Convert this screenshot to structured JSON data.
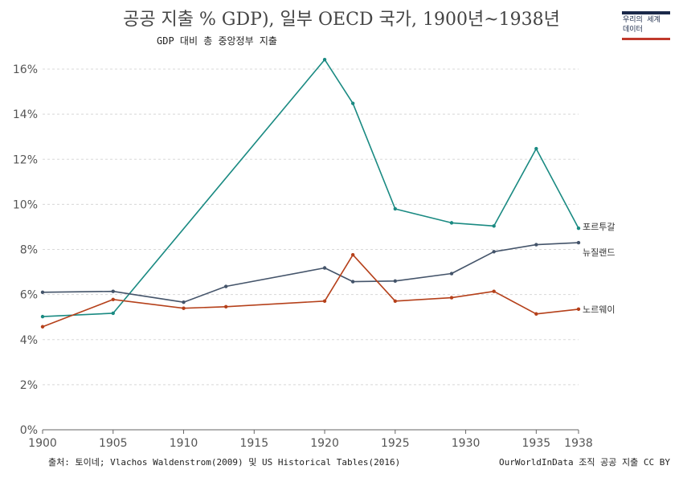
{
  "header": {
    "title": "공공 지출 % GDP), 일부 OECD 국가, 1900년~1938년",
    "subtitle": "GDP 대비 총 중앙정부 지출"
  },
  "logo": {
    "line1": "우리의 세계",
    "line2": "데이터"
  },
  "footer": {
    "source": "출처: 토이네; Vlachos Waldenstrom(2009) 및 US Historical Tables(2016)",
    "license": "OurWorldInData 조직 공공 지출 CC BY"
  },
  "colors": {
    "portugal": "#1a8a82",
    "newzealand": "#44546a",
    "norway": "#b5401a",
    "grid": "#d8d8d8",
    "axis": "#666666"
  },
  "chart_data": {
    "type": "line",
    "title": "공공 지출 % GDP), 일부 OECD 국가, 1900년~1938년",
    "subtitle": "GDP 대비 총 중앙정부 지출",
    "xlabel": "",
    "ylabel": "",
    "xlim": [
      1900,
      1938
    ],
    "ylim": [
      0,
      16
    ],
    "x_ticks": [
      1900,
      1905,
      1910,
      1915,
      1920,
      1925,
      1930,
      1935,
      1938
    ],
    "y_ticks": [
      0,
      2,
      4,
      6,
      8,
      10,
      12,
      14,
      16
    ],
    "y_tick_labels": [
      "0%",
      "2%",
      "4%",
      "6%",
      "8%",
      "10%",
      "12%",
      "14%",
      "16%"
    ],
    "grid": "horizontal-dashed",
    "series": [
      {
        "name": "포르투갈",
        "color": "#1a8a82",
        "x": [
          1900,
          1905,
          1920,
          1922,
          1925,
          1929,
          1932,
          1935,
          1938
        ],
        "y": [
          5.02,
          5.17,
          16.42,
          14.48,
          9.8,
          9.18,
          9.04,
          12.47,
          8.94
        ]
      },
      {
        "name": "뉴질랜드",
        "color": "#44546a",
        "x": [
          1900,
          1905,
          1910,
          1913,
          1920,
          1922,
          1925,
          1929,
          1932,
          1935,
          1938
        ],
        "y": [
          6.1,
          6.14,
          5.66,
          6.36,
          7.18,
          6.57,
          6.6,
          6.93,
          7.9,
          8.21,
          8.3
        ]
      },
      {
        "name": "노르웨이",
        "color": "#b5401a",
        "x": [
          1900,
          1905,
          1910,
          1913,
          1920,
          1922,
          1925,
          1929,
          1932,
          1935,
          1938
        ],
        "y": [
          4.57,
          5.78,
          5.39,
          5.46,
          5.71,
          7.76,
          5.71,
          5.86,
          6.14,
          5.14,
          5.35
        ]
      }
    ]
  }
}
